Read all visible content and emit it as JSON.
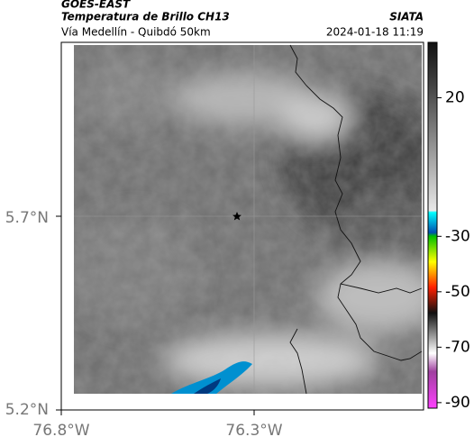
{
  "header": {
    "satellite": "GOES-EAST",
    "product": "Temperatura de Brillo CH13",
    "location": "Vía Medellín - Quibdó 50km",
    "source": "SIATA",
    "datetime": "2024-01-18 11:19"
  },
  "map": {
    "lat_ticks": [
      "5.7°N",
      "5.2°N"
    ],
    "lon_ticks": [
      "76.8°W",
      "76.3°W"
    ]
  },
  "colorbar": {
    "ticks": [
      20,
      -30,
      -50,
      -70,
      -90
    ],
    "clim": [
      -92,
      40
    ]
  }
}
